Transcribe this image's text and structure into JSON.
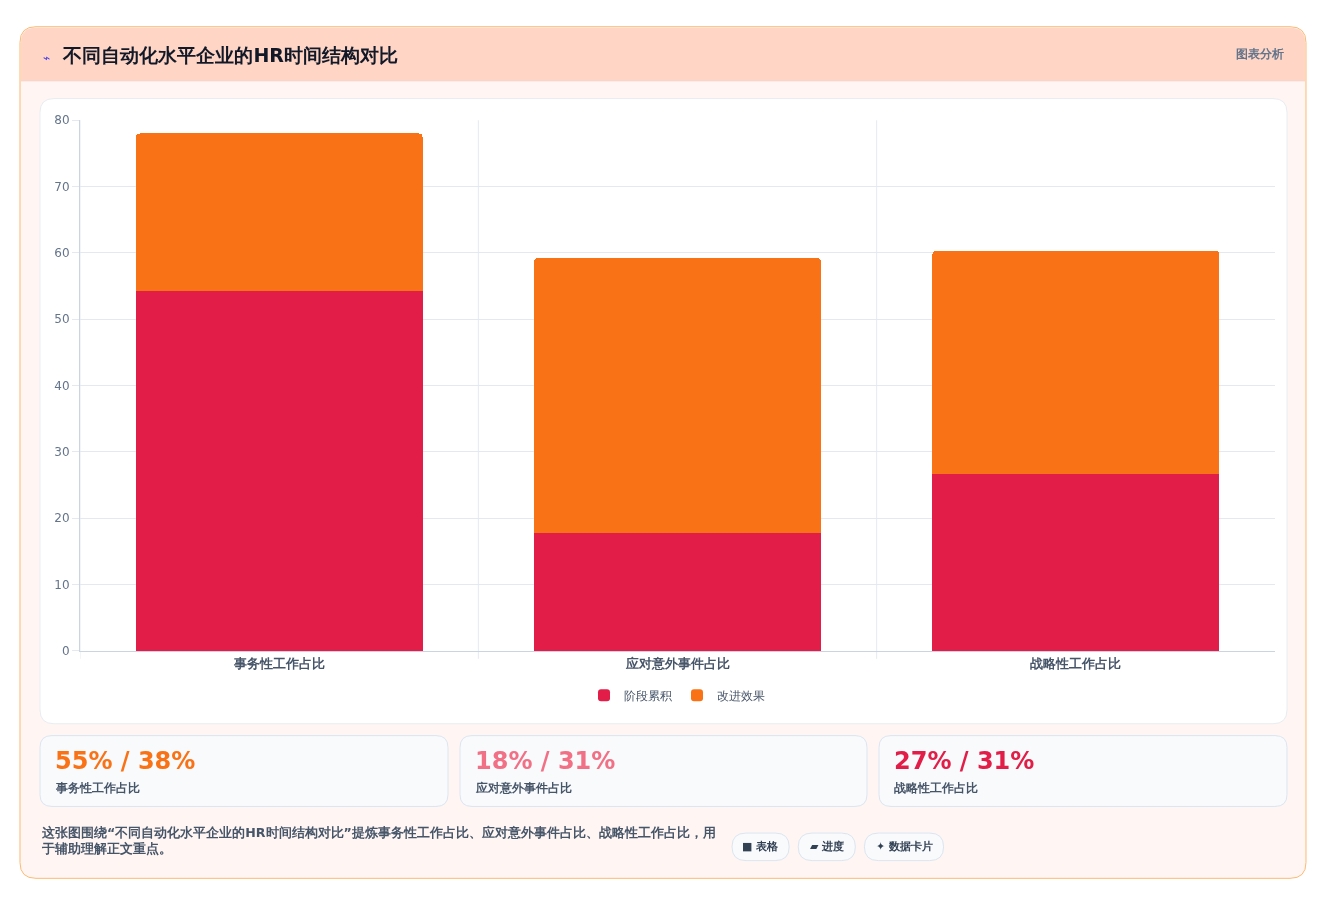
{
  "chart_data": {
    "type": "bar",
    "title": "⌁ 不同自动化水平企业的HR时间结构对比",
    "categories": [
      "事务性工作占比",
      "应对意外事件占比",
      "战略性工作占比"
    ],
    "series": [
      {
        "name": "阶段累积",
        "color": "#e11d48",
        "values": [
          54.3,
          17.7,
          26.6
        ]
      },
      {
        "name": "改进效果",
        "color": "#f97316",
        "values": [
          23.7,
          41.5,
          33.7
        ]
      }
    ],
    "stacked": true,
    "ylim": [
      0,
      80
    ],
    "yticks": [
      0,
      10,
      20,
      30,
      40,
      50,
      60,
      70,
      80
    ],
    "grid": true,
    "legend": "bottom",
    "annotations": [
      "图表分析",
      "55% / 38%",
      "事务性工作占比",
      "18% / 31%",
      "应对意外事件占比",
      "27% / 31%",
      "战略性工作占比",
      "这张图围绕“不同自动化水平企业的HR时间结构对比”提炼事务性工作占比、应对意外事件占比、战略性工作占比，用于辅助理解正文重点。",
      "■ 表格",
      "▰ 进度",
      "✦ 数据卡片"
    ]
  }
}
